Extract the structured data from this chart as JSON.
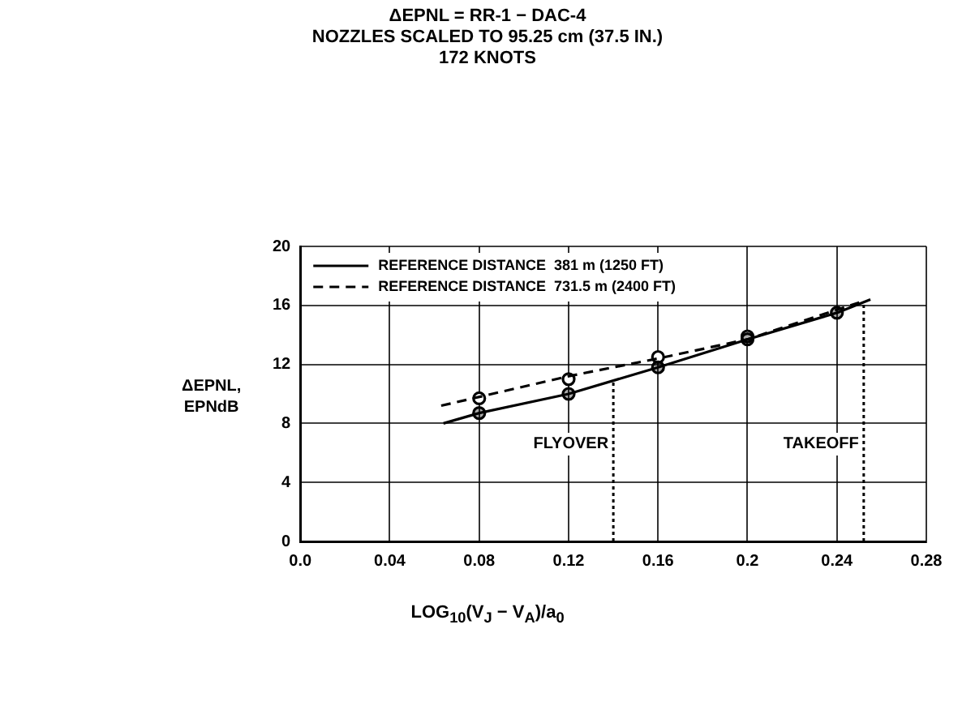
{
  "chart_data": {
    "type": "line",
    "title": "ΔEPNL = RR-1 − DAC-4",
    "subtitle": "NOZZLES SCALED TO 95.25 cm (37.5 IN.)\n172 KNOTS",
    "xlabel": "LOG$_{10}$(V$_{J}$ − V$_{A}$)/a$_{0}$",
    "ylabel": "ΔEPNL,\nEPNdB",
    "series": [
      {
        "name": "REFERENCE DISTANCE  381 m (1250 FT)",
        "color": "#000000",
        "line_style": "solid",
        "x": [
          0.064,
          0.08,
          0.12,
          0.16,
          0.2,
          0.24,
          0.255
        ],
        "values": [
          8.0,
          8.7,
          10.0,
          11.8,
          13.7,
          15.5,
          16.4
        ]
      },
      {
        "name": "REFERENCE DISTANCE  731.5 m (2400 FT)",
        "color": "#000000",
        "line_style": "dashed",
        "x": [
          0.063,
          0.12,
          0.16,
          0.2,
          0.25
        ],
        "values": [
          9.2,
          11.2,
          12.4,
          13.7,
          16.2
        ]
      },
      {
        "type": "scatter",
        "color": "#000000",
        "marker": "circle",
        "x": [
          0.08,
          0.12,
          0.16,
          0.2,
          0.24
        ],
        "values": [
          8.7,
          10.0,
          11.8,
          13.7,
          15.5
        ]
      },
      {
        "type": "scatter",
        "color": "#000000",
        "marker": "circle",
        "x": [
          0.08,
          0.12,
          0.16,
          0.2
        ],
        "values": [
          9.7,
          11.0,
          12.5,
          13.9
        ]
      }
    ],
    "ref_lines": [
      {
        "axis": "x",
        "value": 0.14,
        "label": "FLYOVER",
        "line_style": "dotted"
      },
      {
        "axis": "x",
        "value": 0.252,
        "label": "TAKEOFF",
        "line_style": "dotted"
      }
    ],
    "xlim": [
      0,
      0.28
    ],
    "xticks": [
      {
        "value": 0,
        "label": "0.0"
      },
      0.04,
      0.08,
      0.12,
      0.16,
      0.2,
      0.24,
      0.28
    ],
    "ylim": [
      0,
      20
    ],
    "yticks": [
      0,
      4,
      8,
      12,
      16,
      20
    ],
    "grid": true,
    "legend": "top left"
  }
}
